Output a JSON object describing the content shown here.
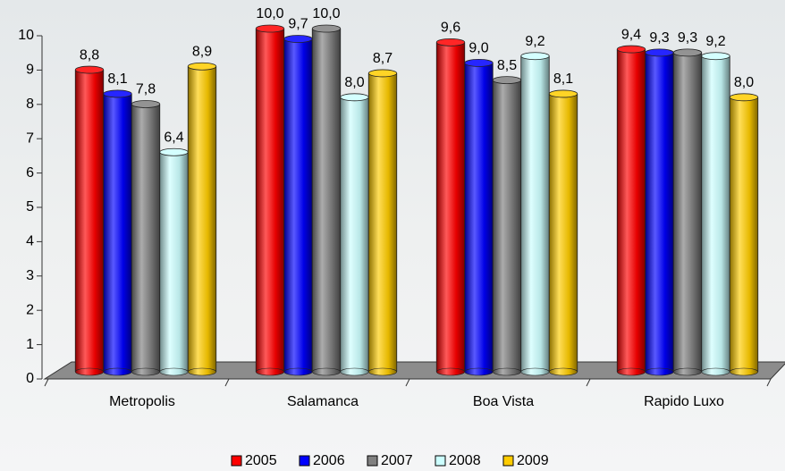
{
  "chart_data": {
    "type": "bar",
    "categories": [
      "Metropolis",
      "Salamanca",
      "Boa Vista",
      "Rapido Luxo"
    ],
    "series": [
      {
        "name": "2005",
        "color": "#ff0000",
        "values": [
          8.8,
          10.0,
          9.6,
          9.4
        ],
        "value_labels": [
          "8,8",
          "10,0",
          "9,6",
          "9,4"
        ]
      },
      {
        "name": "2006",
        "color": "#0000ff",
        "values": [
          8.1,
          9.7,
          9.0,
          9.3
        ],
        "value_labels": [
          "8,1",
          "9,7",
          "9,0",
          "9,3"
        ]
      },
      {
        "name": "2007",
        "color": "#808080",
        "values": [
          7.8,
          10.0,
          8.5,
          9.3
        ],
        "value_labels": [
          "7,8",
          "10,0",
          "8,5",
          "9,3"
        ]
      },
      {
        "name": "2008",
        "color": "#ccffff",
        "values": [
          6.4,
          8.0,
          9.2,
          9.2
        ],
        "value_labels": [
          "6,4",
          "8,0",
          "9,2",
          "9,2"
        ]
      },
      {
        "name": "2009",
        "color": "#ffcc00",
        "values": [
          8.9,
          8.7,
          8.1,
          8.0
        ],
        "value_labels": [
          "8,9",
          "8,7",
          "8,1",
          "8,0"
        ]
      }
    ],
    "ylim": [
      0,
      10
    ],
    "yticks": [
      0,
      1,
      2,
      3,
      4,
      5,
      6,
      7,
      8,
      9,
      10
    ],
    "legend": "bottom"
  }
}
